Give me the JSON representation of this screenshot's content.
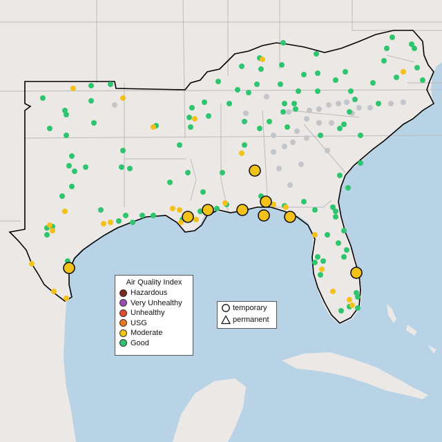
{
  "legend": {
    "aqi_title": "Air Quality Index",
    "categories": [
      {
        "label": "Hazardous",
        "color": "#7a2a1e"
      },
      {
        "label": "Very Unhealthy",
        "color": "#9b4fb4"
      },
      {
        "label": "Unhealthy",
        "color": "#e2492f"
      },
      {
        "label": "USG",
        "color": "#e8781f"
      },
      {
        "label": "Moderate",
        "color": "#f2c21b"
      },
      {
        "label": "Good",
        "color": "#2fc46e"
      }
    ],
    "shapes": [
      {
        "label": "temporary",
        "shape": "circle"
      },
      {
        "label": "permanent",
        "shape": "triangle"
      }
    ]
  },
  "colors": {
    "land": "#ece8e6",
    "water": "#b8d3e6",
    "no_data": "#c3c5c8",
    "region_outline": "#000000"
  }
}
